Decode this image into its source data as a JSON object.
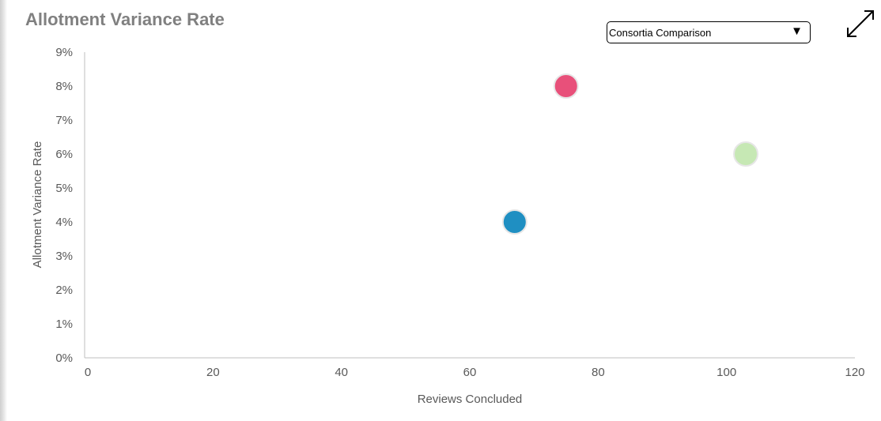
{
  "title": "Allotment Variance Rate",
  "dropdown": {
    "selected": "Consortia Comparison",
    "arrow": "▼"
  },
  "expand_icon": "expand-diagonal-icon",
  "chart_data": {
    "type": "scatter",
    "xlabel": "Reviews Concluded",
    "ylabel": "Allotment Variance  Rate",
    "xlim": [
      0,
      120
    ],
    "ylim": [
      0,
      9
    ],
    "x_ticks": [
      0,
      20,
      40,
      60,
      80,
      100,
      120
    ],
    "x_tick_labels": [
      "0",
      "20",
      "40",
      "60",
      "80",
      "100",
      "120"
    ],
    "y_ticks": [
      0,
      1,
      2,
      3,
      4,
      5,
      6,
      7,
      8,
      9
    ],
    "y_tick_labels": [
      "0%",
      "1%",
      "2%",
      "3%",
      "4%",
      "5%",
      "6%",
      "7%",
      "8%",
      "9%"
    ],
    "grid": false,
    "points": [
      {
        "x": 67,
        "y": 4,
        "color": "#1f8fc2"
      },
      {
        "x": 75,
        "y": 8,
        "color": "#e8507a"
      },
      {
        "x": 103,
        "y": 6,
        "color": "#c6e8b4"
      }
    ]
  }
}
